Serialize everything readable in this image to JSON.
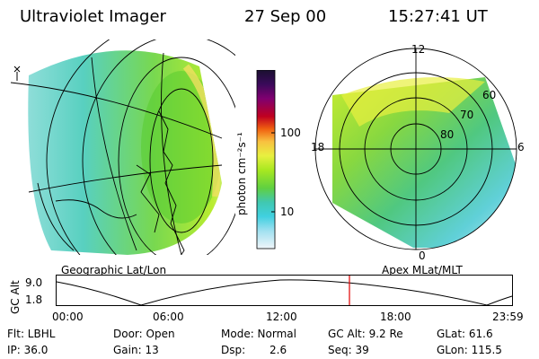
{
  "header": {
    "instrument": "Ultraviolet Imager",
    "date": "27 Sep 00",
    "time": "15:27:41 UT"
  },
  "geo_map": {
    "label": "Geographic Lat/Lon"
  },
  "colorbar": {
    "unit_label": "photon cm⁻²s⁻¹",
    "ticks": [
      "100",
      "10"
    ],
    "colors": [
      "#1a1030",
      "#3a0a5a",
      "#800070",
      "#b00030",
      "#e02010",
      "#f06010",
      "#f8a020",
      "#f8e060",
      "#d8f020",
      "#90e020",
      "#50d040",
      "#40c8a0",
      "#40d0e0",
      "#a0e8f0",
      "#e8f4f8"
    ]
  },
  "polar_map": {
    "label": "Apex MLat/MLT",
    "hour_labels": [
      "12",
      "18",
      "6",
      "0"
    ],
    "lat_labels": [
      "60",
      "70",
      "80"
    ]
  },
  "timeline": {
    "y_axis_title": "GC Alt",
    "y_ticks": [
      "9.0",
      "1.8"
    ],
    "x_ticks": [
      "00:00",
      "06:00",
      "12:00",
      "18:00",
      "23:59"
    ],
    "marker_color": "#e00000"
  },
  "info": {
    "flt": "Flt: LBHL",
    "ip": "IP: 36.0",
    "door": "Door: Open",
    "gain": "Gain: 13",
    "mode": "Mode: Normal",
    "dsp_label": "Dsp:",
    "dsp_value": "2.6",
    "gc_alt": "GC Alt: 9.2 Re",
    "seq": "Seq: 39",
    "glat": "GLat: 61.6",
    "glon": "GLon: 115.5"
  }
}
